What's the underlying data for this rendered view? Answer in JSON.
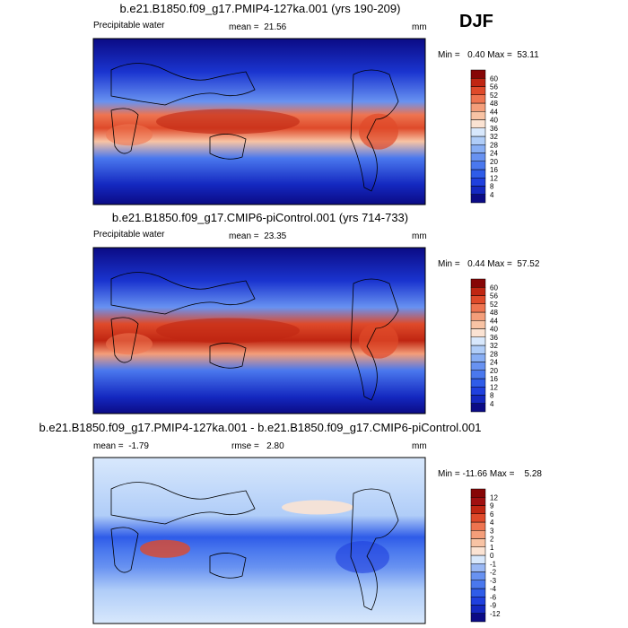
{
  "season": "DJF",
  "panels": [
    {
      "title": "b.e21.B1850.f09_g17.PMIP4-127ka.001 (yrs 190-209)",
      "variable": "Precipitable water",
      "mean": "mean =  21.56",
      "units": "mm",
      "stats": "Min =   0.40 Max =  53.11",
      "colorbar": {
        "levels": [
          4,
          8,
          12,
          16,
          20,
          24,
          28,
          32,
          36,
          40,
          44,
          48,
          52,
          56,
          60
        ],
        "colors": [
          "#0b0b85",
          "#1428c0",
          "#1f40de",
          "#2f5ce8",
          "#4a78ee",
          "#6892f1",
          "#88aef4",
          "#b0cdf8",
          "#d8e8fc",
          "#fbe3d3",
          "#f8c3a4",
          "#f49e7a",
          "#ee7450",
          "#df4a2a",
          "#c02612",
          "#870606"
        ]
      }
    },
    {
      "title": "b.e21.B1850.f09_g17.CMIP6-piControl.001 (yrs 714-733)",
      "variable": "Precipitable water",
      "mean": "mean =  23.35",
      "units": "mm",
      "stats": "Min =   0.44 Max =  57.52",
      "colorbar": {
        "levels": [
          4,
          8,
          12,
          16,
          20,
          24,
          28,
          32,
          36,
          40,
          44,
          48,
          52,
          56,
          60
        ],
        "colors": [
          "#0b0b85",
          "#1428c0",
          "#1f40de",
          "#2f5ce8",
          "#4a78ee",
          "#6892f1",
          "#88aef4",
          "#b0cdf8",
          "#d8e8fc",
          "#fbe3d3",
          "#f8c3a4",
          "#f49e7a",
          "#ee7450",
          "#df4a2a",
          "#c02612",
          "#870606"
        ]
      }
    },
    {
      "title": "b.e21.B1850.f09_g17.PMIP4-127ka.001 - b.e21.B1850.f09_g17.CMIP6-piControl.001",
      "mean": "mean =  -1.79",
      "rmse": "rmse =   2.80",
      "units": "mm",
      "stats": "Min = -11.66 Max =    5.28",
      "colorbar": {
        "levels": [
          -12,
          -9,
          -6,
          -4,
          -3,
          -2,
          -1,
          0,
          1,
          2,
          3,
          4,
          6,
          9,
          12
        ],
        "colors": [
          "#0b0b85",
          "#1428c0",
          "#1f40de",
          "#2f5ce8",
          "#4a78ee",
          "#6892f1",
          "#9ab8f4",
          "#d8e8fc",
          "#fbe3d3",
          "#f8c3a4",
          "#f49e7a",
          "#ee7450",
          "#df4a2a",
          "#c02612",
          "#a01010",
          "#870606"
        ]
      }
    }
  ]
}
